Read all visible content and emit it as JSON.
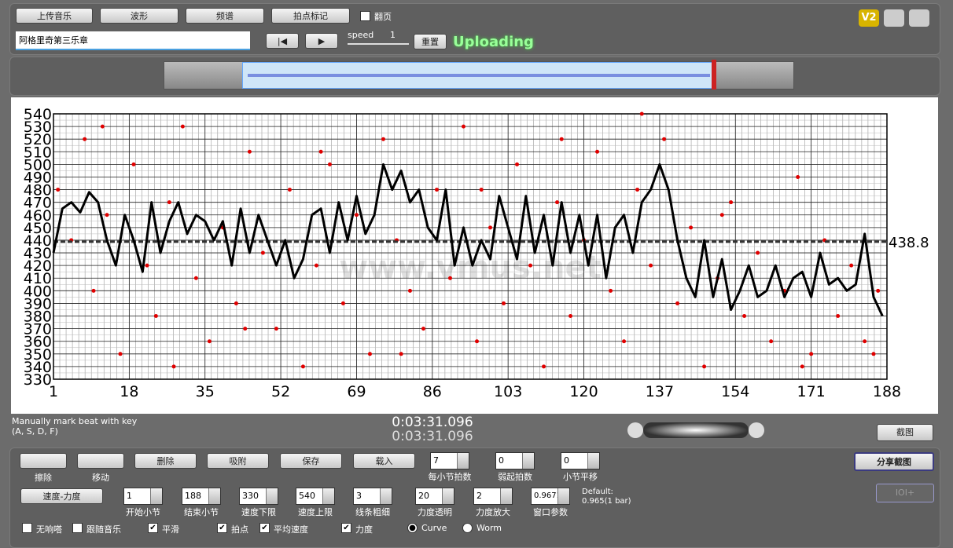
{
  "top": {
    "buttons": [
      "上传音乐",
      "波形",
      "频谱",
      "拍点标记"
    ],
    "page_flip": "翻页",
    "track_title": "阿格里奇第三乐章",
    "speed_label": "speed",
    "speed_value": 1,
    "reset": "重置",
    "status": "Uploading",
    "version": "V2"
  },
  "chart_data": {
    "type": "line",
    "color": "#000000",
    "x": [
      1,
      3,
      5,
      7,
      9,
      11,
      13,
      15,
      17,
      19,
      21,
      23,
      25,
      27,
      29,
      31,
      33,
      35,
      37,
      39,
      41,
      43,
      45,
      47,
      49,
      51,
      53,
      55,
      57,
      59,
      61,
      63,
      65,
      67,
      69,
      71,
      73,
      75,
      77,
      79,
      81,
      83,
      85,
      87,
      89,
      91,
      93,
      95,
      97,
      99,
      101,
      103,
      105,
      107,
      109,
      111,
      113,
      115,
      117,
      119,
      121,
      123,
      125,
      127,
      129,
      131,
      133,
      135,
      137,
      139,
      141,
      143,
      145,
      147,
      149,
      151,
      153,
      155,
      157,
      159,
      161,
      163,
      165,
      167,
      169,
      171,
      173,
      175,
      177,
      179,
      181,
      183,
      185,
      187
    ],
    "values": [
      430,
      465,
      470,
      462,
      478,
      470,
      440,
      420,
      460,
      440,
      415,
      470,
      430,
      455,
      470,
      445,
      460,
      455,
      440,
      455,
      420,
      465,
      430,
      460,
      440,
      420,
      440,
      410,
      425,
      460,
      465,
      430,
      470,
      440,
      475,
      445,
      460,
      500,
      480,
      495,
      470,
      480,
      450,
      440,
      480,
      420,
      450,
      420,
      440,
      425,
      475,
      450,
      425,
      475,
      430,
      460,
      420,
      470,
      430,
      460,
      420,
      460,
      410,
      450,
      460,
      430,
      470,
      480,
      500,
      480,
      440,
      410,
      395,
      440,
      395,
      425,
      385,
      400,
      420,
      395,
      400,
      420,
      395,
      410,
      415,
      395,
      430,
      405,
      410,
      400,
      405,
      445,
      395,
      380
    ],
    "dots": {
      "color": "#e00000",
      "x": [
        2,
        5,
        8,
        10,
        13,
        16,
        19,
        22,
        24,
        27,
        30,
        33,
        36,
        39,
        42,
        45,
        48,
        51,
        54,
        57,
        60,
        63,
        66,
        69,
        72,
        75,
        78,
        81,
        84,
        87,
        90,
        93,
        96,
        99,
        102,
        105,
        108,
        111,
        114,
        117,
        120,
        123,
        126,
        129,
        132,
        135,
        138,
        141,
        144,
        147,
        150,
        153,
        156,
        159,
        162,
        165,
        168,
        171,
        174,
        177,
        180,
        183,
        186,
        12,
        28,
        44,
        61,
        79,
        97,
        115,
        133,
        151,
        169,
        185
      ],
      "values": [
        480,
        440,
        520,
        400,
        460,
        350,
        500,
        420,
        380,
        470,
        530,
        410,
        360,
        450,
        390,
        510,
        430,
        370,
        480,
        340,
        420,
        500,
        390,
        460,
        350,
        520,
        440,
        400,
        370,
        480,
        410,
        530,
        360,
        450,
        390,
        500,
        420,
        340,
        470,
        380,
        440,
        510,
        400,
        360,
        480,
        420,
        520,
        390,
        450,
        340,
        410,
        470,
        380,
        430,
        360,
        400,
        490,
        350,
        440,
        380,
        420,
        360,
        400,
        530,
        340,
        370,
        510,
        350,
        480,
        520,
        540,
        460,
        340,
        350
      ],
      "y_note": null
    },
    "mean": 438.8,
    "watermark": "www.vmus.net",
    "ylim": [
      330,
      540
    ],
    "yticks": [
      330,
      340,
      350,
      360,
      370,
      380,
      390,
      400,
      410,
      420,
      430,
      440,
      450,
      460,
      470,
      480,
      490,
      500,
      510,
      520,
      530,
      540
    ],
    "xlim": [
      1,
      188
    ],
    "xticks": [
      1,
      18,
      35,
      52,
      69,
      86,
      103,
      120,
      137,
      154,
      171,
      188
    ],
    "grid": true
  },
  "status": {
    "hint_line1": "Manually mark beat with key",
    "hint_line2": "(A, S, D, F)",
    "time_current": "0:03:31.096",
    "time_total": "0:03:31.096",
    "screenshot": "截图"
  },
  "controls": {
    "tools": [
      "擦除",
      "移动"
    ],
    "buttons": [
      "删除",
      "吸附",
      "保存",
      "载入"
    ],
    "spinners1": [
      {
        "label": "每小节拍数",
        "value": 7
      },
      {
        "label": "弱起拍数",
        "value": 0
      },
      {
        "label": "小节平移",
        "value": 0
      }
    ],
    "mode": "速度-力度",
    "spinners2": [
      {
        "label": "开始小节",
        "value": 1
      },
      {
        "label": "结束小节",
        "value": 188
      },
      {
        "label": "速度下限",
        "value": 330
      },
      {
        "label": "速度上限",
        "value": 540
      },
      {
        "label": "线条粗细",
        "value": 3
      },
      {
        "label": "力度透明",
        "value": 20
      },
      {
        "label": "力度放大",
        "value": 2
      },
      {
        "label": "窗口参数",
        "value": "0.96710"
      }
    ],
    "default_label": "Default:",
    "default_value": "0.965(1 bar)",
    "share": "分享截图",
    "ioi": "IOI+",
    "checks": [
      {
        "label": "无响嗒",
        "checked": false
      },
      {
        "label": "跟随音乐",
        "checked": false
      },
      {
        "label": "平滑",
        "checked": true
      },
      {
        "label": "拍点",
        "checked": true
      },
      {
        "label": "平均速度",
        "checked": true
      },
      {
        "label": "力度",
        "checked": true
      }
    ],
    "radios": [
      {
        "label": "Curve",
        "checked": true
      },
      {
        "label": "Worm",
        "checked": false
      }
    ]
  }
}
